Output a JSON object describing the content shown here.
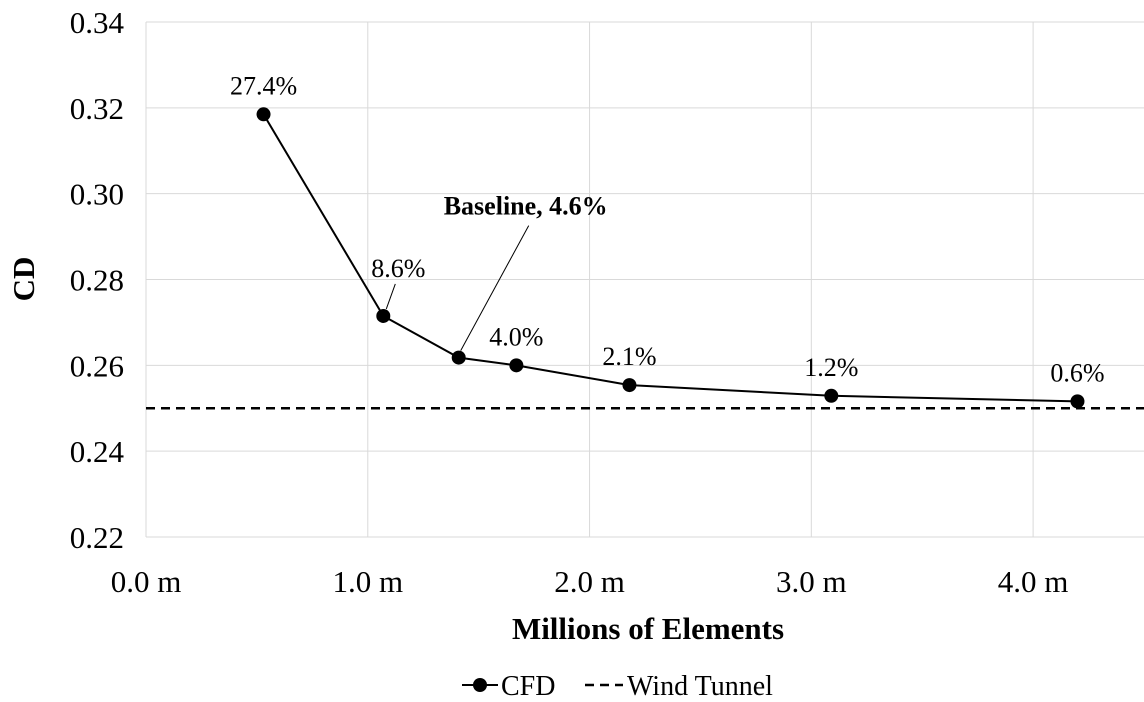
{
  "chart_data": {
    "type": "line",
    "title": "",
    "xlabel": "Millions of Elements",
    "ylabel": "CD",
    "xlim": [
      0,
      4.5
    ],
    "ylim": [
      0.22,
      0.34
    ],
    "grid": true,
    "legend_position": "bottom",
    "x_tick_values": [
      0,
      1,
      2,
      3,
      4
    ],
    "x_tick_labels": [
      "0.0 m",
      "1.0 m",
      "2.0 m",
      "3.0 m",
      "4.0 m"
    ],
    "y_tick_values": [
      0.22,
      0.24,
      0.26,
      0.28,
      0.3,
      0.32,
      0.34
    ],
    "y_tick_labels": [
      "0.22",
      "0.24",
      "0.26",
      "0.28",
      "0.30",
      "0.32",
      "0.34"
    ],
    "series": [
      {
        "name": "CFD",
        "style": "solid-with-markers",
        "color": "#000000",
        "x": [
          0.53,
          1.07,
          1.41,
          1.67,
          2.18,
          3.09,
          4.2
        ],
        "y": [
          0.3185,
          0.2715,
          0.2618,
          0.26,
          0.2554,
          0.2529,
          0.2516
        ],
        "labels": [
          "27.4%",
          "8.6%",
          "Baseline, 4.6%",
          "4.0%",
          "2.1%",
          "1.2%",
          "0.6%"
        ]
      },
      {
        "name": "Wind Tunnel",
        "style": "dashed",
        "color": "#000000",
        "y": 0.25
      }
    ]
  }
}
